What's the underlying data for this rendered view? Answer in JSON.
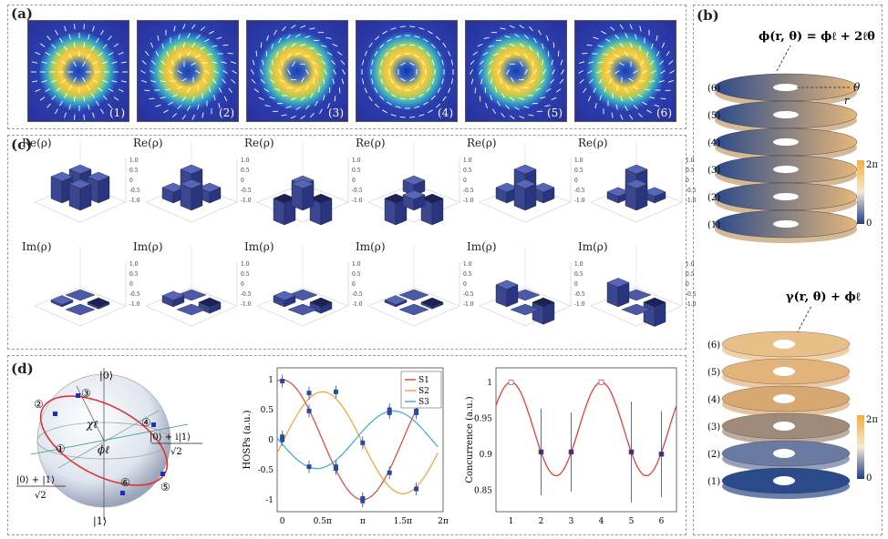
{
  "panel_labels": {
    "a": "(a)",
    "b": "(b)",
    "c": "(c)",
    "d": "(d)"
  },
  "modes": [
    {
      "label": "(1)"
    },
    {
      "label": "(2)"
    },
    {
      "label": "(3)"
    },
    {
      "label": "(4)"
    },
    {
      "label": "(5)"
    },
    {
      "label": "(6)"
    }
  ],
  "density_matrix": {
    "re_label": "Re(ρ)",
    "im_label": "Im(ρ)",
    "z_ticks": [
      "1.0",
      "0.5",
      "0",
      "-0.5",
      "-1.0"
    ],
    "re_patterns": [
      [
        1,
        1,
        1,
        1
      ],
      [
        1,
        0.5,
        0.5,
        1
      ],
      [
        0.5,
        -1,
        -1,
        1
      ],
      [
        0.5,
        -1,
        -1,
        0.5
      ],
      [
        1,
        0.5,
        0.5,
        1
      ],
      [
        1,
        0.3,
        0.3,
        1
      ]
    ],
    "im_patterns": [
      [
        0,
        0.1,
        -0.1,
        0
      ],
      [
        0,
        0.3,
        -0.3,
        0
      ],
      [
        0,
        0.3,
        -0.3,
        0
      ],
      [
        0,
        0.1,
        -0.1,
        0
      ],
      [
        0,
        0.8,
        -0.8,
        0
      ],
      [
        0,
        0.9,
        -0.9,
        0
      ]
    ]
  },
  "panel_b": {
    "top_formula": "ϕ(r, θ) = ϕℓ + 2ℓθ",
    "theta_label": "θ",
    "r_label": "r",
    "bottom_formula": "γ(r, θ) + ϕℓ",
    "layers": [
      "(6)",
      "(5)",
      "(4)",
      "(3)",
      "(2)",
      "(1)"
    ],
    "colorbar_max": "2π",
    "colorbar_min": "0"
  },
  "sphere": {
    "north": "|0⟩",
    "south": "|1⟩",
    "state_right_num": "|0⟩ + i|1⟩",
    "state_right_den": "√2",
    "state_left_num": "|0⟩ + |1⟩",
    "state_left_den": "√2",
    "chi": "χℓ",
    "phi": "ϕℓ",
    "points": [
      "①",
      "②",
      "③",
      "④",
      "⑤",
      "⑥"
    ]
  },
  "hosps_chart": {
    "ylabel": "HOSPs (a.u.)",
    "xticks": [
      "0",
      "0.5π",
      "π",
      "1.5π",
      "2π"
    ],
    "yticks": [
      "1",
      "0.5",
      "0",
      "-0.5",
      "-1"
    ],
    "legend": [
      "S1",
      "S2",
      "S3"
    ]
  },
  "concurrence_chart": {
    "ylabel": "Concurrence (a.u.)",
    "xticks": [
      "1",
      "2",
      "3",
      "4",
      "5",
      "6"
    ],
    "yticks": [
      "1",
      "0.95",
      "0.9",
      "0.85"
    ]
  },
  "chart_data": [
    {
      "type": "line",
      "xlabel": "",
      "ylabel": "HOSPs (a.u.)",
      "xlim": [
        -0.2,
        6.2832
      ],
      "ylim": [
        -1.2,
        1.2
      ],
      "series": [
        {
          "name": "S1",
          "color": "#d9443a",
          "x": [
            0,
            1.0472,
            2.0944,
            3.1416,
            4.1888,
            5.236
          ],
          "values": [
            0.98,
            0.48,
            -0.48,
            -0.98,
            -0.55,
            0.48
          ]
        },
        {
          "name": "S2",
          "color": "#e8a23a",
          "x": [
            0,
            1.0472,
            2.0944,
            3.1416,
            4.1888,
            5.236
          ],
          "values": [
            0.0,
            0.78,
            0.8,
            -1.02,
            0.5,
            -0.82
          ]
        },
        {
          "name": "S3",
          "color": "#3aa8d9",
          "x": [
            0,
            1.0472,
            2.0944,
            3.1416,
            4.1888,
            5.236
          ],
          "values": [
            0.05,
            -0.45,
            -0.45,
            -0.05,
            0.45,
            0.45
          ]
        }
      ]
    },
    {
      "type": "line",
      "xlabel": "",
      "ylabel": "Concurrence (a.u.)",
      "xlim": [
        0.5,
        6.5
      ],
      "ylim": [
        0.82,
        1.02
      ],
      "series": [
        {
          "name": "",
          "color": "#1f3a8a",
          "x": [
            1,
            2,
            3,
            4,
            5,
            6
          ],
          "values": [
            1.0,
            0.903,
            0.903,
            1.0,
            0.903,
            0.9
          ],
          "errors": [
            0,
            0.06,
            0.055,
            0,
            0.07,
            0.06
          ]
        }
      ]
    }
  ]
}
